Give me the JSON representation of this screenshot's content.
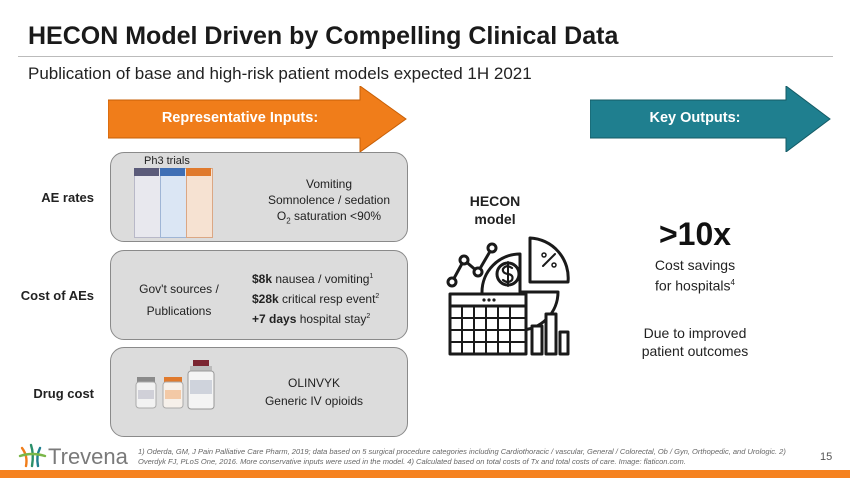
{
  "slide": {
    "title": "HECON Model Driven by Compelling Clinical Data",
    "subtitle": "Publication of base and high-risk patient models expected 1H 2021",
    "page_number": "15"
  },
  "arrows": {
    "inputs_label": "Representative Inputs:",
    "outputs_label": "Key Outputs:",
    "inputs_color": "#f07d1a",
    "outputs_color": "#1f7f8f"
  },
  "rows": {
    "ae": {
      "label": "AE rates",
      "table_caption": "Ph3 trials",
      "lines": [
        "Vomiting",
        "Somnolence / sedation",
        "O",
        "2",
        " saturation <90%"
      ]
    },
    "cost": {
      "label": "Cost of AEs",
      "left_line1": "Gov't sources /",
      "left_line2": "Publications",
      "items": [
        {
          "bold": "$8k",
          "text": " nausea / vomiting",
          "sup": "1"
        },
        {
          "bold": "$28k",
          "text": " critical resp event",
          "sup": "2"
        },
        {
          "bold": "+7 days",
          "text": " hospital stay",
          "sup": "2"
        }
      ]
    },
    "drug": {
      "label": "Drug cost",
      "line1": "OLINVYK",
      "line2": "Generic IV opioids"
    }
  },
  "hecon": {
    "line1": "HECON",
    "line2": "model",
    "icon": "financial-analytics-icon"
  },
  "outputs": {
    "big": ">10x",
    "line1": "Cost savings",
    "line2": "for hospitals",
    "sup": "4",
    "line3": "Due to improved",
    "line4": "patient outcomes"
  },
  "footer": {
    "footnote": "1) Oderda, GM, J Pain Palliative Care Pharm, 2019; data based on 5 surgical procedure categories including Cardiothoracic / vascular, General / Colorectal, Ob / Gyn, Orthopedic, and Urologic. 2) Overdyk FJ, PLoS One, 2016. More conservative inputs were used in the model. 4) Calculated based on total costs of Tx and total costs of care. Image: flaticon.com.",
    "logo": "Trevena",
    "brand_color": "#f58220"
  }
}
